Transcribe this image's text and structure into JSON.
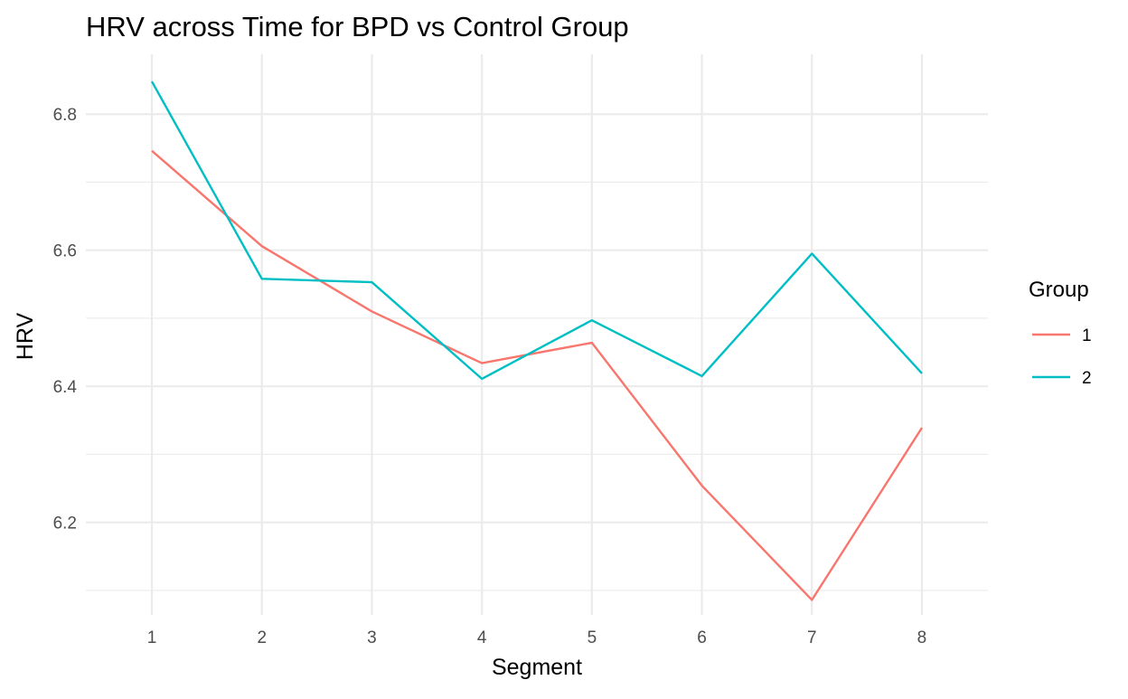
{
  "chart_data": {
    "type": "line",
    "title": "HRV across Time for BPD vs Control Group",
    "xlabel": "Segment",
    "ylabel": "HRV",
    "x": [
      1,
      2,
      3,
      4,
      5,
      6,
      7,
      8
    ],
    "x_tick_labels": [
      "1",
      "2",
      "3",
      "4",
      "5",
      "6",
      "7",
      "8"
    ],
    "y_ticks": [
      6.2,
      6.4,
      6.6,
      6.8
    ],
    "y_tick_labels": [
      "6.2",
      "6.4",
      "6.6",
      "6.8"
    ],
    "xlim": [
      0.4,
      8.6
    ],
    "ylim": [
      6.064,
      6.888
    ],
    "grid": true,
    "legend": {
      "title": "Group",
      "position": "right"
    },
    "series": [
      {
        "name": "1",
        "color": "#F8766D",
        "values": [
          6.746,
          6.606,
          6.51,
          6.434,
          6.464,
          6.254,
          6.086,
          6.339
        ]
      },
      {
        "name": "2",
        "color": "#00BFC4",
        "values": [
          6.848,
          6.558,
          6.553,
          6.411,
          6.497,
          6.415,
          6.595,
          6.419
        ]
      }
    ]
  }
}
